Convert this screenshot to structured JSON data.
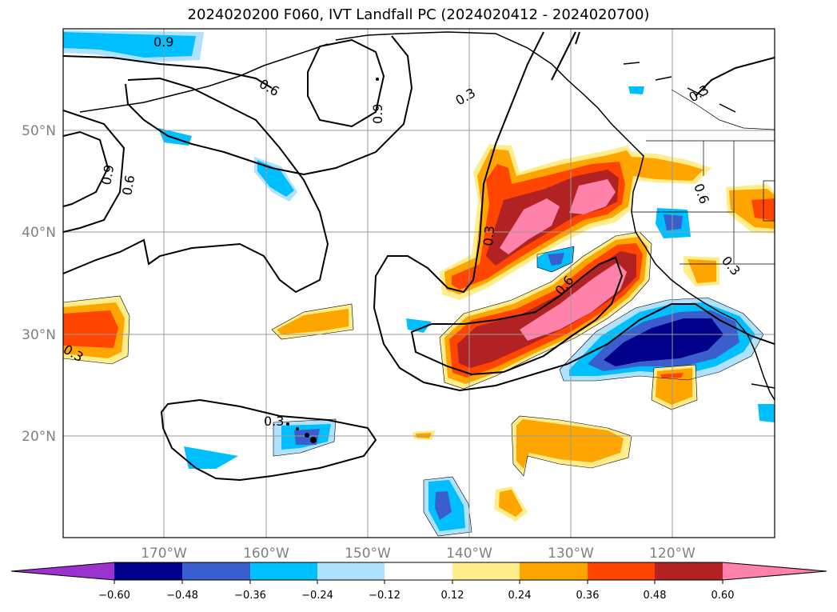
{
  "title": "2024020200 F060, IVT Landfall PC (2024020412 - 2024020700)",
  "map": {
    "lon_range": [
      -180,
      -110
    ],
    "lat_range": [
      10,
      60
    ],
    "lat_ticks": [
      {
        "value": 50,
        "label": "50°N"
      },
      {
        "value": 40,
        "label": "40°N"
      },
      {
        "value": 30,
        "label": "30°N"
      },
      {
        "value": 20,
        "label": "20°N"
      }
    ],
    "lon_ticks": [
      {
        "value": -170,
        "label": "170°W"
      },
      {
        "value": -160,
        "label": "160°W"
      },
      {
        "value": -150,
        "label": "150°W"
      },
      {
        "value": -140,
        "label": "140°W"
      },
      {
        "value": -130,
        "label": "130°W"
      },
      {
        "value": -120,
        "label": "120°W"
      }
    ],
    "contour_labels": [
      "0.9",
      "0.6",
      "0.9",
      "0.3",
      "0.9",
      "0.6",
      "0.3",
      "0.3",
      "0.3",
      "0.6",
      "0.6",
      "0.3",
      "0.3",
      "0.3"
    ]
  },
  "colorbar": {
    "colors": [
      "#9a32cd",
      "#00008b",
      "#3a5fcd",
      "#00bfff",
      "#b0e2ff",
      "#ffffff",
      "#ffec8b",
      "#ffa500",
      "#ff4500",
      "#b22222",
      "#ff82ab",
      "#ff82ab"
    ],
    "tick_labels": [
      "−0.60",
      "−0.48",
      "−0.36",
      "−0.24",
      "−0.12",
      "0.12",
      "0.24",
      "0.36",
      "0.48",
      "0.60"
    ]
  }
}
